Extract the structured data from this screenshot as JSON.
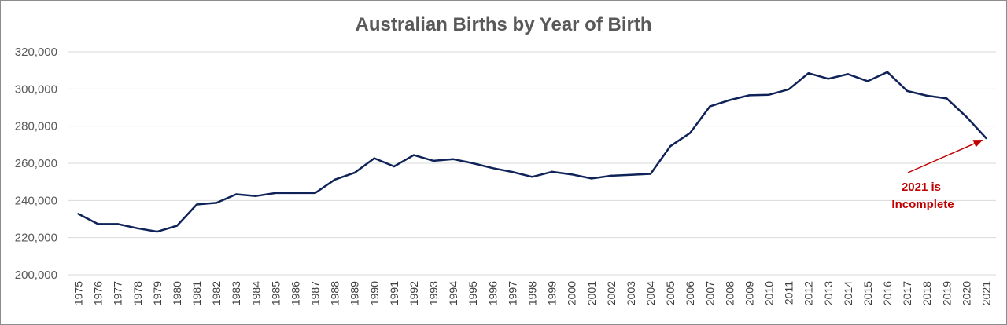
{
  "chart_data": {
    "type": "line",
    "title": "Australian Births by Year of Birth",
    "xlabel": "",
    "ylabel": "",
    "ylim": [
      200000,
      320000
    ],
    "yticks": [
      200000,
      220000,
      240000,
      260000,
      280000,
      300000,
      320000
    ],
    "ytick_labels": [
      "200,000",
      "220,000",
      "240,000",
      "260,000",
      "280,000",
      "300,000",
      "320,000"
    ],
    "grid": true,
    "legend": "none",
    "categories": [
      "1975",
      "1976",
      "1977",
      "1978",
      "1979",
      "1980",
      "1981",
      "1982",
      "1983",
      "1984",
      "1985",
      "1986",
      "1987",
      "1988",
      "1989",
      "1990",
      "1991",
      "1992",
      "1993",
      "1994",
      "1995",
      "1996",
      "1997",
      "1998",
      "1999",
      "2000",
      "2001",
      "2002",
      "2003",
      "2004",
      "2005",
      "2006",
      "2007",
      "2008",
      "2009",
      "2010",
      "2011",
      "2012",
      "2013",
      "2014",
      "2015",
      "2016",
      "2017",
      "2018",
      "2019",
      "2020",
      "2021"
    ],
    "series": [
      {
        "values": [
          232800,
          227300,
          227300,
          225000,
          223200,
          226400,
          237800,
          238700,
          243300,
          242400,
          244000,
          244000,
          244000,
          251200,
          254900,
          262700,
          258300,
          264400,
          261300,
          262200,
          260000,
          257400,
          255300,
          252700,
          255400,
          254000,
          251800,
          253300,
          253800,
          254300,
          269200,
          276300,
          290600,
          294000,
          296600,
          296900,
          299800,
          308500,
          305500,
          308000,
          304200,
          309100,
          298900,
          296400,
          294900,
          285000,
          273500
        ]
      }
    ],
    "annotation": {
      "text_line1": "2021 is",
      "text_line2": "Incomplete",
      "target_category": "2021",
      "target_value": 273500
    },
    "colors": {
      "line": "#0f2358",
      "annotation": "#c00000",
      "grid": "#d9d9d9",
      "tick_text": "#595959",
      "title_text": "#595959"
    }
  }
}
